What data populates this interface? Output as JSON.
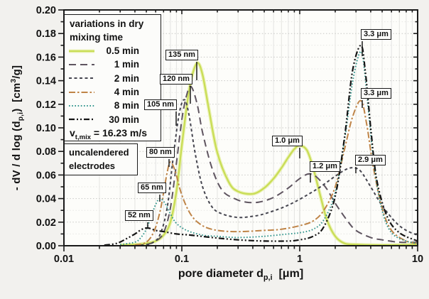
{
  "figure": {
    "background": "#f2f1ee",
    "plot_background": "#fdfdfa",
    "frame_color": "#1a1a1a"
  },
  "legend": {
    "title_line1": "variations in dry",
    "title_line2": "mixing time",
    "vtmix": {
      "symbol": "v",
      "subscript": "t,mix",
      "value": " = 16.23 m/s"
    }
  },
  "notes": {
    "line1": "uncalendered",
    "line2": "electrodes"
  },
  "axes": {
    "x": {
      "title_main": "pore diameter d",
      "title_sub": "p,i",
      "title_unit": "[μm]",
      "ticks": [
        "0.01",
        "0.1",
        "1",
        "10"
      ],
      "tick_values": [
        0.01,
        0.1,
        1,
        10
      ]
    },
    "y": {
      "title_main": "- dV / d log (d",
      "title_sub": "p,i",
      "title_close": ")",
      "unit_pre": "[cm",
      "unit_sup": "3",
      "unit_post": "/g]",
      "ticks": [
        "0.00",
        "0.02",
        "0.04",
        "0.06",
        "0.08",
        "0.10",
        "0.12",
        "0.14",
        "0.16",
        "0.18",
        "0.20"
      ]
    }
  },
  "chart_data": {
    "type": "line",
    "title": "",
    "xlabel": "pore diameter d_p,i [μm]",
    "ylabel": "- dV / d log (d_p,i) [cm³/g]",
    "x_scale": "log",
    "xlim": [
      0.01,
      10
    ],
    "ylim": [
      0,
      0.2
    ],
    "y_tick_step": 0.02,
    "grid": true,
    "legend_position": "top-left",
    "series": [
      {
        "name": "0.5 min",
        "color": "#c9dd55",
        "halo": "#ebf2b9",
        "dash": "",
        "width": 2.3,
        "points": [
          [
            0.03,
            0.0005
          ],
          [
            0.04,
            0.001
          ],
          [
            0.05,
            0.002
          ],
          [
            0.06,
            0.004
          ],
          [
            0.07,
            0.009
          ],
          [
            0.08,
            0.02
          ],
          [
            0.09,
            0.046
          ],
          [
            0.1,
            0.085
          ],
          [
            0.11,
            0.118
          ],
          [
            0.12,
            0.141
          ],
          [
            0.135,
            0.155
          ],
          [
            0.15,
            0.145
          ],
          [
            0.17,
            0.115
          ],
          [
            0.2,
            0.079
          ],
          [
            0.25,
            0.054
          ],
          [
            0.3,
            0.046
          ],
          [
            0.4,
            0.044
          ],
          [
            0.5,
            0.049
          ],
          [
            0.6,
            0.057
          ],
          [
            0.7,
            0.066
          ],
          [
            0.8,
            0.075
          ],
          [
            0.9,
            0.082
          ],
          [
            1.0,
            0.085
          ],
          [
            1.15,
            0.081
          ],
          [
            1.3,
            0.066
          ],
          [
            1.5,
            0.042
          ],
          [
            1.7,
            0.022
          ],
          [
            2.0,
            0.008
          ],
          [
            2.4,
            0.002
          ],
          [
            3.0,
            0.001
          ],
          [
            5.0,
            0.0005
          ],
          [
            10,
            0.001
          ]
        ]
      },
      {
        "name": "1 min",
        "color": "#5f5560",
        "dash": "10 6",
        "width": 2,
        "points": [
          [
            0.04,
            0.0005
          ],
          [
            0.05,
            0.001
          ],
          [
            0.06,
            0.004
          ],
          [
            0.07,
            0.011
          ],
          [
            0.08,
            0.032
          ],
          [
            0.09,
            0.07
          ],
          [
            0.1,
            0.107
          ],
          [
            0.11,
            0.128
          ],
          [
            0.12,
            0.135
          ],
          [
            0.135,
            0.12
          ],
          [
            0.15,
            0.096
          ],
          [
            0.18,
            0.066
          ],
          [
            0.22,
            0.047
          ],
          [
            0.28,
            0.04
          ],
          [
            0.35,
            0.037
          ],
          [
            0.45,
            0.037
          ],
          [
            0.6,
            0.041
          ],
          [
            0.8,
            0.049
          ],
          [
            1.0,
            0.057
          ],
          [
            1.2,
            0.061
          ],
          [
            1.4,
            0.058
          ],
          [
            1.7,
            0.048
          ],
          [
            2.0,
            0.036
          ],
          [
            2.5,
            0.022
          ],
          [
            3.0,
            0.013
          ],
          [
            4.0,
            0.007
          ],
          [
            5.0,
            0.005
          ],
          [
            7.0,
            0.003
          ],
          [
            10,
            0.003
          ]
        ]
      },
      {
        "name": "2 min",
        "color": "#45454f",
        "dash": "4 3.5",
        "width": 2,
        "points": [
          [
            0.045,
            0.0005
          ],
          [
            0.055,
            0.002
          ],
          [
            0.065,
            0.009
          ],
          [
            0.075,
            0.032
          ],
          [
            0.085,
            0.077
          ],
          [
            0.095,
            0.112
          ],
          [
            0.105,
            0.124
          ],
          [
            0.115,
            0.111
          ],
          [
            0.13,
            0.078
          ],
          [
            0.15,
            0.05
          ],
          [
            0.18,
            0.033
          ],
          [
            0.22,
            0.027
          ],
          [
            0.3,
            0.024
          ],
          [
            0.4,
            0.025
          ],
          [
            0.5,
            0.027
          ],
          [
            0.7,
            0.032
          ],
          [
            0.9,
            0.037
          ],
          [
            1.2,
            0.044
          ],
          [
            1.5,
            0.05
          ],
          [
            2.0,
            0.059
          ],
          [
            2.5,
            0.065
          ],
          [
            2.9,
            0.066
          ],
          [
            3.3,
            0.063
          ],
          [
            4.0,
            0.05
          ],
          [
            5.0,
            0.034
          ],
          [
            6.5,
            0.02
          ],
          [
            8.0,
            0.013
          ],
          [
            10,
            0.009
          ]
        ]
      },
      {
        "name": "4 min",
        "color": "#bf8447",
        "dash": "9 3 2.5 3",
        "width": 2,
        "points": [
          [
            0.04,
            0.0005
          ],
          [
            0.05,
            0.003
          ],
          [
            0.058,
            0.012
          ],
          [
            0.065,
            0.028
          ],
          [
            0.07,
            0.045
          ],
          [
            0.075,
            0.062
          ],
          [
            0.08,
            0.071
          ],
          [
            0.088,
            0.063
          ],
          [
            0.1,
            0.043
          ],
          [
            0.12,
            0.026
          ],
          [
            0.15,
            0.017
          ],
          [
            0.2,
            0.013
          ],
          [
            0.3,
            0.012
          ],
          [
            0.5,
            0.013
          ],
          [
            0.7,
            0.014
          ],
          [
            1.0,
            0.017
          ],
          [
            1.3,
            0.021
          ],
          [
            1.6,
            0.03
          ],
          [
            2.0,
            0.05
          ],
          [
            2.4,
            0.082
          ],
          [
            2.8,
            0.109
          ],
          [
            3.3,
            0.123
          ],
          [
            3.7,
            0.103
          ],
          [
            4.2,
            0.067
          ],
          [
            5.0,
            0.032
          ],
          [
            6.0,
            0.013
          ],
          [
            8.0,
            0.004
          ],
          [
            10,
            0.002
          ]
        ]
      },
      {
        "name": "8 min",
        "color": "#2f948c",
        "dash": "1.6 2.6",
        "width": 1.9,
        "points": [
          [
            0.03,
            0.001
          ],
          [
            0.04,
            0.003
          ],
          [
            0.045,
            0.007
          ],
          [
            0.05,
            0.014
          ],
          [
            0.055,
            0.025
          ],
          [
            0.06,
            0.035
          ],
          [
            0.065,
            0.04
          ],
          [
            0.072,
            0.036
          ],
          [
            0.08,
            0.027
          ],
          [
            0.09,
            0.019
          ],
          [
            0.11,
            0.013
          ],
          [
            0.15,
            0.009
          ],
          [
            0.2,
            0.008
          ],
          [
            0.3,
            0.007
          ],
          [
            0.5,
            0.008
          ],
          [
            0.8,
            0.01
          ],
          [
            1.0,
            0.011
          ],
          [
            1.3,
            0.014
          ],
          [
            1.6,
            0.022
          ],
          [
            2.0,
            0.045
          ],
          [
            2.4,
            0.09
          ],
          [
            2.8,
            0.138
          ],
          [
            3.2,
            0.163
          ],
          [
            3.45,
            0.158
          ],
          [
            3.8,
            0.118
          ],
          [
            4.3,
            0.066
          ],
          [
            5.0,
            0.03
          ],
          [
            6.0,
            0.011
          ],
          [
            8.0,
            0.004
          ],
          [
            10,
            0.002
          ]
        ]
      },
      {
        "name": "30 min",
        "color": "#141414",
        "dash": "8 3 2 3 2 3",
        "width": 2.2,
        "points": [
          [
            0.022,
            0.0005
          ],
          [
            0.028,
            0.002
          ],
          [
            0.034,
            0.006
          ],
          [
            0.04,
            0.01
          ],
          [
            0.046,
            0.014
          ],
          [
            0.052,
            0.015
          ],
          [
            0.06,
            0.013
          ],
          [
            0.07,
            0.012
          ],
          [
            0.09,
            0.01
          ],
          [
            0.12,
            0.009
          ],
          [
            0.18,
            0.007
          ],
          [
            0.3,
            0.005
          ],
          [
            0.5,
            0.004
          ],
          [
            0.8,
            0.004
          ],
          [
            1.0,
            0.005
          ],
          [
            1.3,
            0.008
          ],
          [
            1.6,
            0.016
          ],
          [
            2.0,
            0.042
          ],
          [
            2.4,
            0.092
          ],
          [
            2.8,
            0.148
          ],
          [
            3.3,
            0.17
          ],
          [
            3.6,
            0.148
          ],
          [
            4.0,
            0.1
          ],
          [
            4.5,
            0.056
          ],
          [
            5.5,
            0.025
          ],
          [
            7.0,
            0.011
          ],
          [
            10,
            0.004
          ]
        ]
      }
    ],
    "annotations": [
      {
        "text": "135 nm",
        "peak": [
          0.135,
          0.155
        ],
        "box": [
          233,
          70
        ],
        "leader": [
          277,
          87,
          113
        ]
      },
      {
        "text": "120 nm",
        "peak": [
          0.12,
          0.135
        ],
        "box": [
          225,
          104
        ],
        "leader": [
          268,
          121,
          146
        ]
      },
      {
        "text": "105 nm",
        "peak": [
          0.105,
          0.124
        ],
        "box": [
          203,
          140
        ],
        "leader": [
          248,
          157,
          177
        ]
      },
      {
        "text": "80 nm",
        "peak": [
          0.08,
          0.071
        ],
        "box": [
          206,
          207
        ],
        "leader": [
          238,
          224,
          235
        ]
      },
      {
        "text": "65 nm",
        "peak": [
          0.065,
          0.04
        ],
        "box": [
          194,
          257
        ],
        "leader": [
          225,
          274,
          284
        ]
      },
      {
        "text": "52 nm",
        "peak": [
          0.052,
          0.015
        ],
        "box": [
          176,
          296
        ],
        "leader": [
          208,
          313,
          321
        ]
      },
      {
        "text": "1.0 μm",
        "peak": [
          1.0,
          0.085
        ],
        "box": [
          383,
          191
        ],
        "leader": [
          422,
          208,
          223
        ]
      },
      {
        "text": "1.2 μm",
        "peak": [
          1.2,
          0.061
        ],
        "box": [
          436,
          227
        ],
        "leader": [
          437,
          244,
          257
        ]
      },
      {
        "text": "2.9 μm",
        "peak": [
          2.9,
          0.066
        ],
        "box": [
          500,
          218
        ],
        "leader": [
          501,
          235,
          244
        ]
      },
      {
        "text": "3.3 μm",
        "peak": [
          3.3,
          0.17
        ],
        "box": [
          508,
          41
        ],
        "leader": [
          510,
          58,
          79
        ]
      },
      {
        "text": "3.3 μm",
        "peak": [
          3.3,
          0.123
        ],
        "box": [
          508,
          124
        ],
        "leader": [
          510,
          141,
          152
        ]
      }
    ]
  }
}
